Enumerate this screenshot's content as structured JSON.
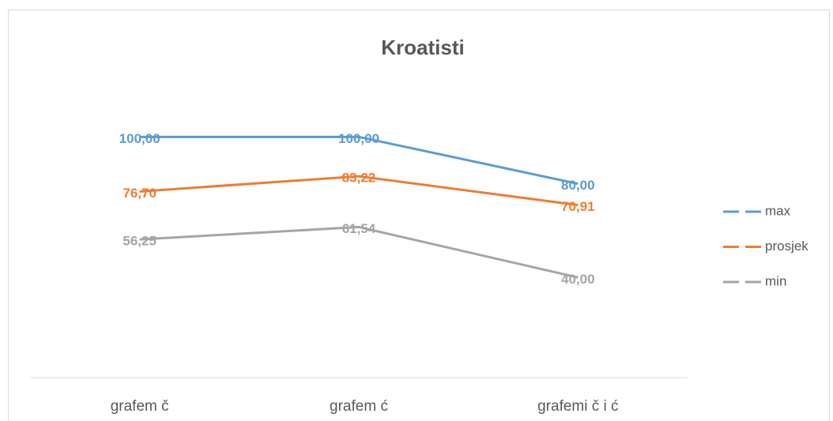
{
  "chart_data": {
    "type": "line",
    "title": "Kroatisti",
    "categories": [
      "grafem č",
      "grafem ć",
      "grafemi č i ć"
    ],
    "series": [
      {
        "name": "max",
        "color": "#5b9bd5",
        "values": [
          100,
          100,
          80
        ],
        "value_labels": [
          "100,00",
          "100,00",
          "80,00"
        ]
      },
      {
        "name": "prosjek",
        "color": "#ed7d31",
        "values": [
          76.7,
          83.22,
          70.91
        ],
        "value_labels": [
          "76,70",
          "83,22",
          "70,91"
        ]
      },
      {
        "name": "min",
        "color": "#a5a5a5",
        "values": [
          56.25,
          61.54,
          40
        ],
        "value_labels": [
          "56,25",
          "61,54",
          "40,00"
        ]
      }
    ],
    "ylim": [
      0,
      120
    ],
    "legend": "right"
  }
}
